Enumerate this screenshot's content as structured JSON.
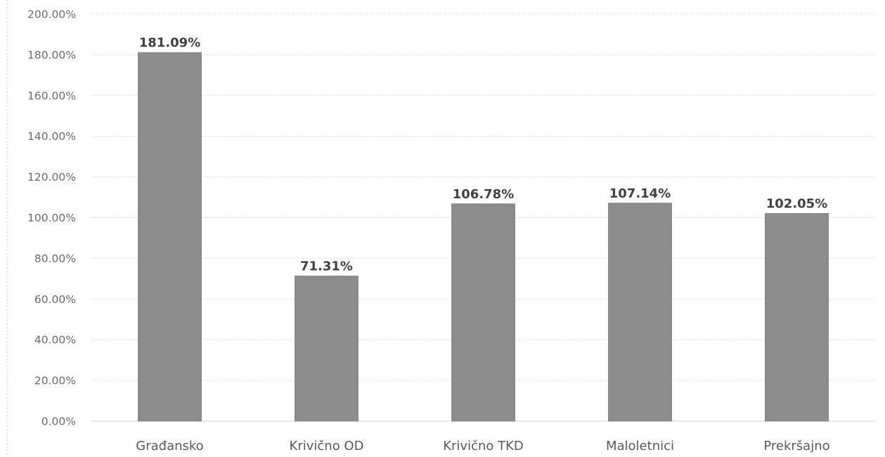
{
  "chart_data": {
    "type": "bar",
    "categories": [
      "Građansko",
      "Krivično OD",
      "Krivično TKD",
      "Maloletnici",
      "Prekršajno"
    ],
    "values": [
      181.09,
      71.31,
      106.78,
      107.14,
      102.05
    ],
    "data_labels": [
      "181.09%",
      "71.31%",
      "106.78%",
      "107.14%",
      "102.05%"
    ],
    "y_ticks": [
      "0.00%",
      "20.00%",
      "40.00%",
      "60.00%",
      "80.00%",
      "100.00%",
      "120.00%",
      "140.00%",
      "160.00%",
      "180.00%",
      "200.00%"
    ],
    "ylim": [
      0,
      200
    ],
    "y_step": 20,
    "grid": true,
    "legend": "none",
    "colors": {
      "bar": "#8c8c8c",
      "bar_edge": "#7a7a7a",
      "grid": "#dcdcdc",
      "text": "#595959",
      "label": "#404040"
    }
  }
}
